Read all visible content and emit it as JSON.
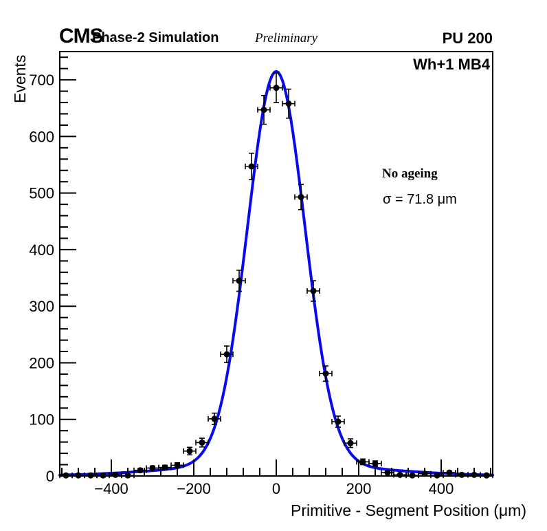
{
  "header": {
    "cms": "CMS",
    "phase": "Phase-2 Simulation",
    "preliminary": "Preliminary",
    "pileup": "PU 200"
  },
  "plot": {
    "region_label": "Wh+1 MB4",
    "scenario_label": "No ageing",
    "sigma_label": "σ = 71.8 μm"
  },
  "chart_data": {
    "type": "scatter",
    "title": "",
    "xlabel": "Primitive - Segment Position (μm)",
    "ylabel": "Events",
    "xlim": [
      -525,
      525
    ],
    "ylim": [
      0,
      750
    ],
    "x_major_ticks": [
      -400,
      -200,
      0,
      200,
      400
    ],
    "x_minor_step": 40,
    "y_major_ticks": [
      0,
      100,
      200,
      300,
      400,
      500,
      600,
      700
    ],
    "y_minor_step": 20,
    "grid": false,
    "legend_position": "none",
    "bin_width_um": 30,
    "x": [
      -510,
      -480,
      -450,
      -420,
      -390,
      -360,
      -330,
      -300,
      -270,
      -240,
      -210,
      -180,
      -150,
      -120,
      -90,
      -60,
      -30,
      0,
      30,
      60,
      90,
      120,
      150,
      180,
      210,
      240,
      270,
      300,
      330,
      360,
      390,
      420,
      450,
      480,
      510
    ],
    "y": [
      1,
      1,
      1,
      1,
      2,
      1,
      10,
      14,
      15,
      19,
      44,
      59,
      101,
      215,
      345,
      547,
      647,
      686,
      658,
      493,
      327,
      181,
      96,
      58,
      25,
      22,
      6,
      2,
      1,
      4,
      1,
      6,
      2,
      2,
      1
    ],
    "x_error_um": 15,
    "y_error_mode": "sqrt",
    "fit": {
      "shape": "double-gaussian",
      "components": [
        {
          "amplitude": 693,
          "mean": 0,
          "sigma": 69.5
        },
        {
          "amplitude": 22,
          "mean": 0,
          "sigma": 230
        }
      ],
      "reported_sigma_um": 71.8,
      "color": "#0a0af0",
      "line_width": 4
    },
    "marker_color": "#000000",
    "frame_color": "#000000",
    "background_color": "#ffffff"
  }
}
